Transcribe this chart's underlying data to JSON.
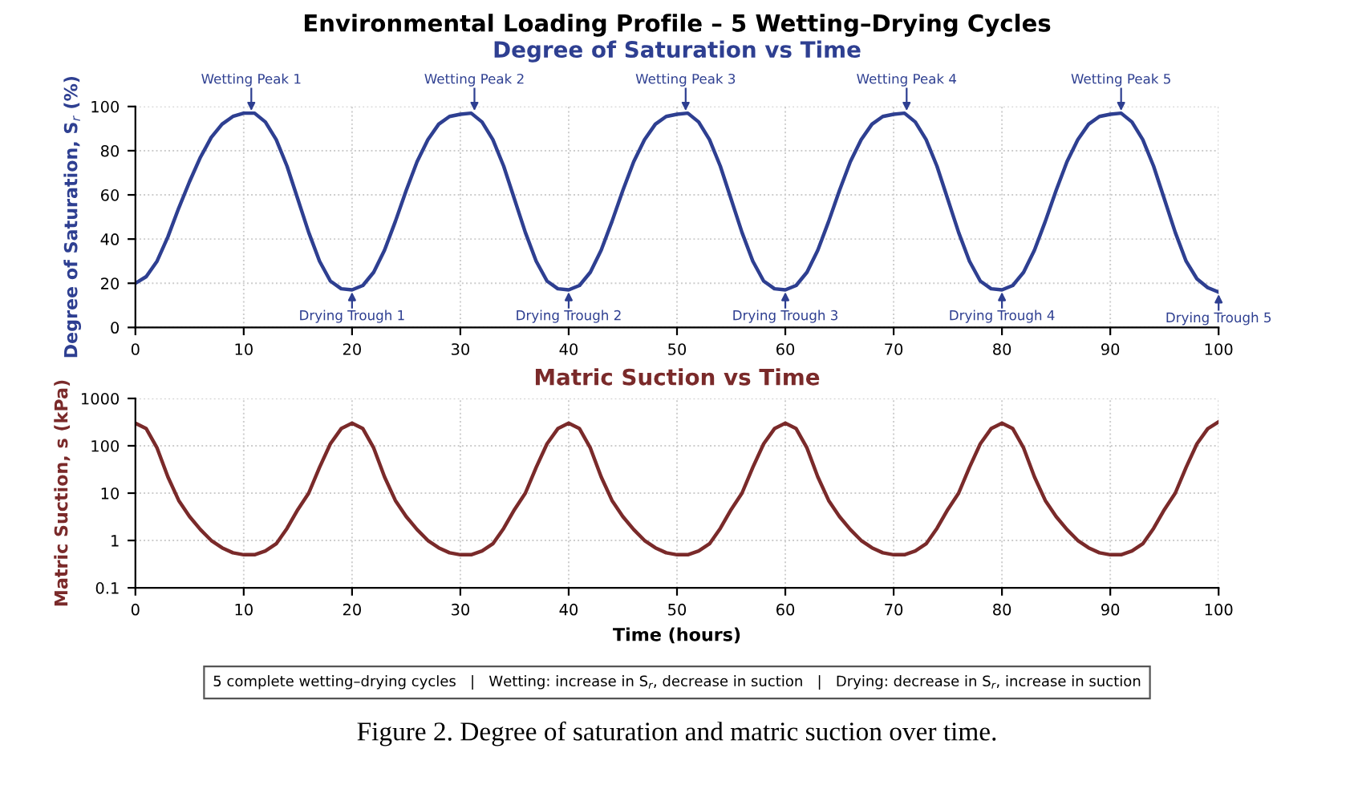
{
  "chart_data": [
    {
      "type": "line",
      "title": "Degree of Saturation vs Time",
      "ylabel": "Degree of Saturation, S$_{r}$ (%)",
      "x": [
        0,
        1,
        2,
        3,
        4,
        5,
        6,
        7,
        8,
        9,
        10,
        11,
        12,
        13,
        14,
        15,
        16,
        17,
        18,
        19,
        20,
        21,
        22,
        23,
        24,
        25,
        26,
        27,
        28,
        29,
        30,
        31,
        32,
        33,
        34,
        35,
        36,
        37,
        38,
        39,
        40,
        41,
        42,
        43,
        44,
        45,
        46,
        47,
        48,
        49,
        50,
        51,
        52,
        53,
        54,
        55,
        56,
        57,
        58,
        59,
        60,
        61,
        62,
        63,
        64,
        65,
        66,
        67,
        68,
        69,
        70,
        71,
        72,
        73,
        74,
        75,
        76,
        77,
        78,
        79,
        80,
        81,
        82,
        83,
        84,
        85,
        86,
        87,
        88,
        89,
        90,
        91,
        92,
        93,
        94,
        95,
        96,
        97,
        98,
        99,
        100
      ],
      "series": [
        {
          "color": "#2e3f91",
          "values": [
            20,
            23,
            30,
            41,
            54,
            66,
            77,
            86,
            92,
            95.5,
            97,
            97,
            93,
            85,
            73,
            58,
            43,
            30,
            21,
            17.5,
            17,
            19,
            25,
            35,
            48,
            62,
            75,
            85,
            92,
            95.5,
            96.5,
            97,
            93,
            85,
            73,
            58,
            43,
            30,
            21,
            17.5,
            17,
            19,
            25,
            35,
            48,
            62,
            75,
            85,
            92,
            95.5,
            96.5,
            97,
            93,
            85,
            73,
            58,
            43,
            30,
            21,
            17.5,
            17,
            19,
            25,
            35,
            48,
            62,
            75,
            85,
            92,
            95.5,
            96.5,
            97,
            93,
            85,
            73,
            58,
            43,
            30,
            21,
            17.5,
            17,
            19,
            25,
            35,
            48,
            62,
            75,
            85,
            92,
            95.5,
            96.5,
            97,
            93,
            85,
            73,
            58,
            43,
            30,
            22,
            18,
            16
          ]
        }
      ],
      "xlim": [
        0,
        100
      ],
      "xticks": [
        0,
        10,
        20,
        30,
        40,
        50,
        60,
        70,
        80,
        90,
        100
      ],
      "ylim": [
        0,
        100
      ],
      "yticks": [
        0,
        20,
        40,
        60,
        80,
        100
      ],
      "grid": true,
      "marker": "none",
      "line_style": "solid",
      "annotations": [
        "Environmental Loading Profile – 5 Wetting–Drying Cycles",
        {
          "text": "Wetting Peak 1",
          "x": 10.7,
          "y": 97
        },
        {
          "text": "Wetting Peak 2",
          "x": 31.3,
          "y": 97
        },
        {
          "text": "Wetting Peak 3",
          "x": 50.8,
          "y": 97
        },
        {
          "text": "Wetting Peak 4",
          "x": 71.2,
          "y": 97
        },
        {
          "text": "Wetting Peak 5",
          "x": 91,
          "y": 97
        },
        {
          "text": "Drying Trough 1",
          "x": 20,
          "y": 17
        },
        {
          "text": "Drying Trough 2",
          "x": 40,
          "y": 17
        },
        {
          "text": "Drying Trough 3",
          "x": 60,
          "y": 17
        },
        {
          "text": "Drying Trough 4",
          "x": 80,
          "y": 17
        },
        {
          "text": "Drying Trough 5",
          "x": 100,
          "y": 16
        }
      ]
    },
    {
      "type": "line",
      "title": "Matric Suction vs Time",
      "xlabel": "Time (hours)",
      "ylabel": "Matric Suction, s (kPa)",
      "log": "y",
      "x": [
        0,
        1,
        2,
        3,
        4,
        5,
        6,
        7,
        8,
        9,
        10,
        11,
        12,
        13,
        14,
        15,
        16,
        17,
        18,
        19,
        20,
        21,
        22,
        23,
        24,
        25,
        26,
        27,
        28,
        29,
        30,
        31,
        32,
        33,
        34,
        35,
        36,
        37,
        38,
        39,
        40,
        41,
        42,
        43,
        44,
        45,
        46,
        47,
        48,
        49,
        50,
        51,
        52,
        53,
        54,
        55,
        56,
        57,
        58,
        59,
        60,
        61,
        62,
        63,
        64,
        65,
        66,
        67,
        68,
        69,
        70,
        71,
        72,
        73,
        74,
        75,
        76,
        77,
        78,
        79,
        80,
        81,
        82,
        83,
        84,
        85,
        86,
        87,
        88,
        89,
        90,
        91,
        92,
        93,
        94,
        95,
        96,
        97,
        98,
        99,
        100
      ],
      "series": [
        {
          "color": "#7a2a2a",
          "values": [
            300,
            230,
            90,
            22,
            7,
            3.2,
            1.7,
            1.0,
            0.7,
            0.55,
            0.5,
            0.5,
            0.6,
            0.85,
            1.8,
            4.5,
            10,
            35,
            110,
            230,
            300,
            230,
            90,
            22,
            7,
            3.2,
            1.7,
            1.0,
            0.7,
            0.55,
            0.5,
            0.5,
            0.6,
            0.85,
            1.8,
            4.5,
            10,
            35,
            110,
            230,
            300,
            230,
            90,
            22,
            7,
            3.2,
            1.7,
            1.0,
            0.7,
            0.55,
            0.5,
            0.5,
            0.6,
            0.85,
            1.8,
            4.5,
            10,
            35,
            110,
            230,
            300,
            230,
            90,
            22,
            7,
            3.2,
            1.7,
            1.0,
            0.7,
            0.55,
            0.5,
            0.5,
            0.6,
            0.85,
            1.8,
            4.5,
            10,
            35,
            110,
            230,
            300,
            230,
            90,
            22,
            7,
            3.2,
            1.7,
            1.0,
            0.7,
            0.55,
            0.5,
            0.5,
            0.6,
            0.85,
            1.8,
            4.5,
            10,
            35,
            110,
            230,
            320
          ]
        }
      ],
      "xlim": [
        0,
        100
      ],
      "xticks": [
        0,
        10,
        20,
        30,
        40,
        50,
        60,
        70,
        80,
        90,
        100
      ],
      "ylim": [
        0.1,
        1000
      ],
      "yticks": [
        0.1,
        1,
        10,
        100,
        1000
      ],
      "grid": true,
      "marker": "none",
      "line_style": "solid",
      "annotations": [
        "5 complete wetting–drying cycles   |   Wetting: increase in S$_{r}$, decrease in suction   |   Drying: decrease in S$_{r}$, increase in suction",
        "Figure 2. Degree of saturation and matric suction over time."
      ]
    }
  ]
}
